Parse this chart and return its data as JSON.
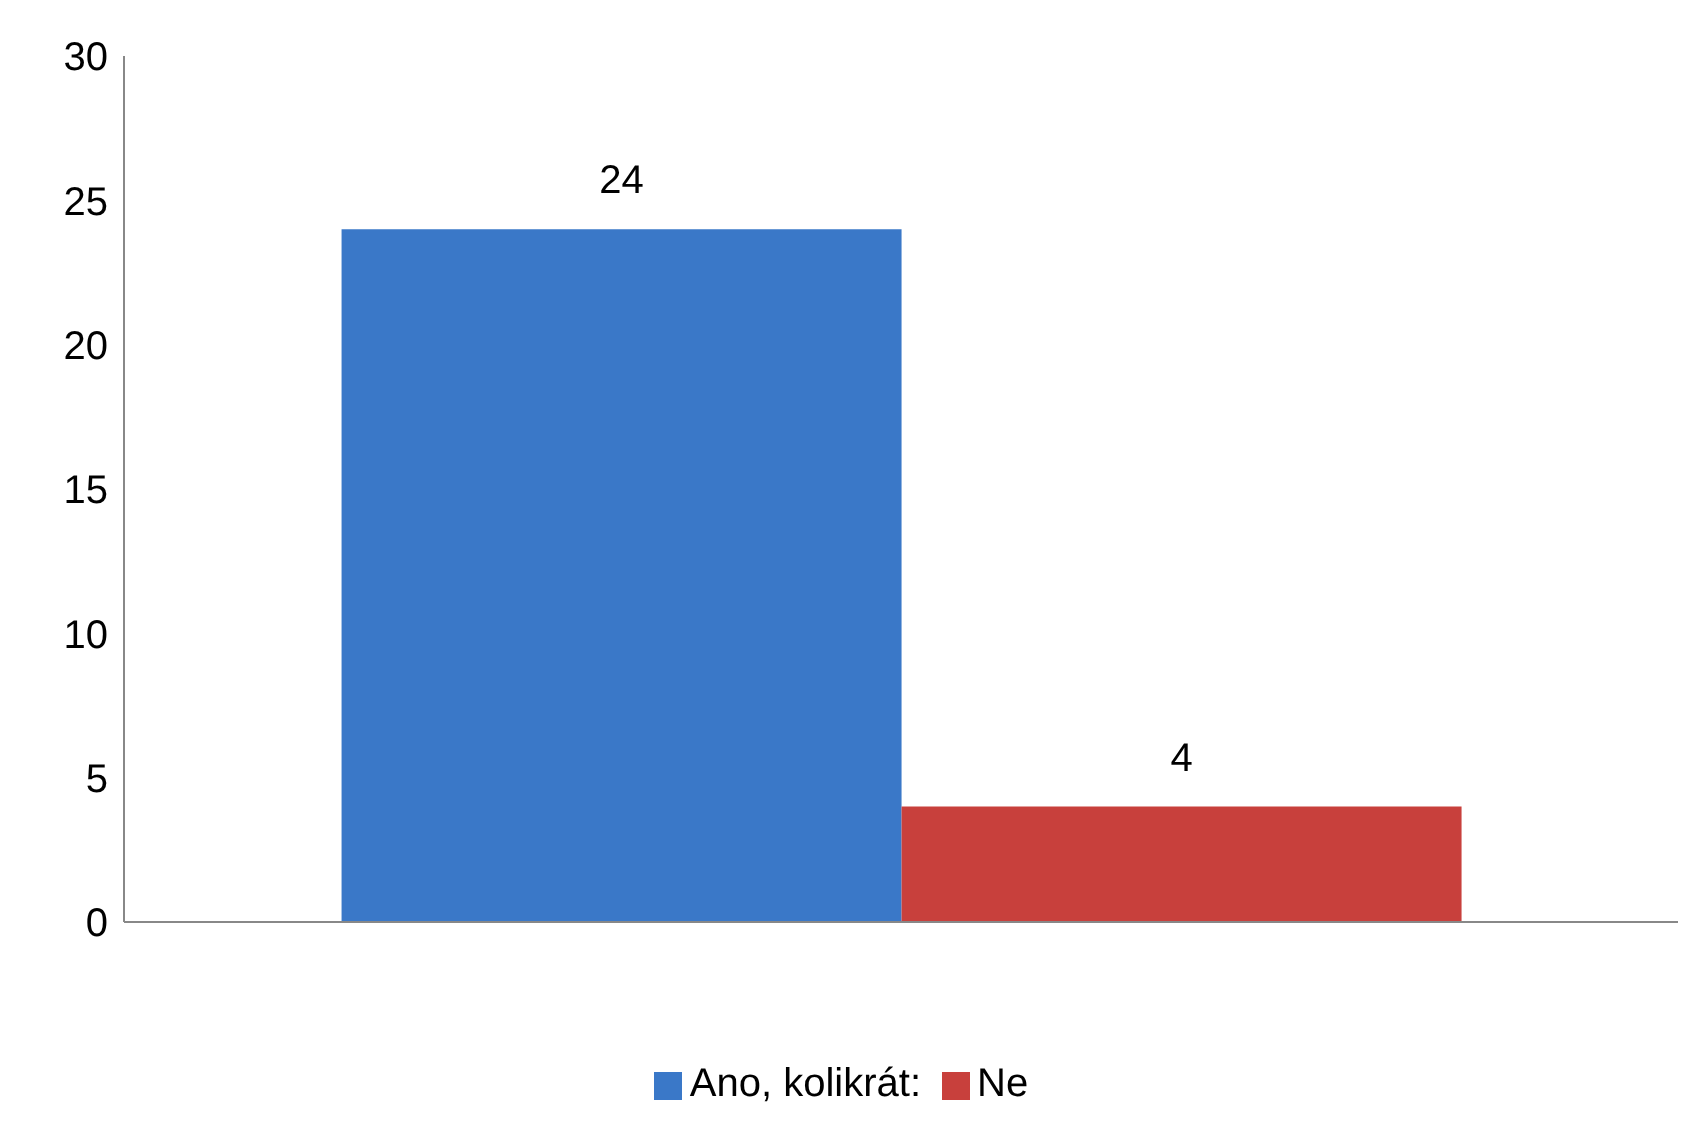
{
  "chart_data": {
    "type": "bar",
    "categories": [
      null
    ],
    "series": [
      {
        "name": "Ano, kolikrát:",
        "color": "#3a78c8",
        "values": [
          24
        ]
      },
      {
        "name": "Ne",
        "color": "#c8403c",
        "values": [
          4
        ]
      }
    ],
    "ylim": [
      0,
      30
    ],
    "yticks": [
      0,
      5,
      10,
      15,
      20,
      25,
      30
    ],
    "grid": false,
    "legend": "bottom",
    "data_labels": true
  }
}
